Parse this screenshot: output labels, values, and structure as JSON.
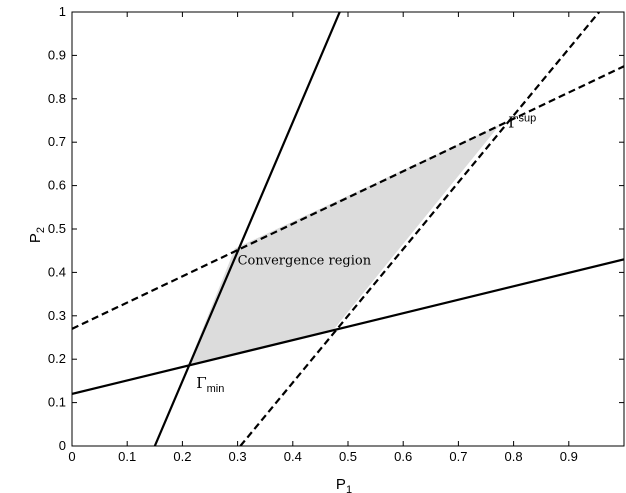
{
  "chart_data": {
    "type": "line",
    "title": "",
    "xlabel": "P",
    "xlabel_sub": "1",
    "ylabel": "P",
    "ylabel_sub": "2",
    "xlim": [
      0,
      1
    ],
    "ylim": [
      0,
      1
    ],
    "grid": false,
    "x_ticks": [
      "0",
      "0.1",
      "0.2",
      "0.3",
      "0.4",
      "0.5",
      "0.6",
      "0.7",
      "0.8",
      "0.9"
    ],
    "y_ticks": [
      "0",
      "0.1",
      "0.2",
      "0.3",
      "0.4",
      "0.5",
      "0.6",
      "0.7",
      "0.8",
      "0.9",
      "1"
    ],
    "series": [
      {
        "style": "solid",
        "color": "#000000",
        "points": [
          [
            0.15,
            0.0
          ],
          [
            0.485,
            1.0
          ]
        ]
      },
      {
        "style": "solid",
        "color": "#000000",
        "points": [
          [
            0.0,
            0.12
          ],
          [
            1.0,
            0.43
          ]
        ]
      },
      {
        "style": "dashed",
        "color": "#000000",
        "points": [
          [
            0.0,
            0.27
          ],
          [
            1.0,
            0.875
          ]
        ]
      },
      {
        "style": "dashed",
        "color": "#000000",
        "points": [
          [
            0.305,
            0.0
          ],
          [
            0.955,
            1.0
          ]
        ]
      }
    ],
    "region": {
      "label": "Convergence region",
      "fill": "#dcdcdc",
      "points": [
        [
          0.21,
          0.185
        ],
        [
          0.295,
          0.455
        ],
        [
          0.775,
          0.74
        ],
        [
          0.475,
          0.27
        ]
      ]
    },
    "annotations": [
      {
        "text": "Γ",
        "sub": "min",
        "x": 0.225,
        "y": 0.145
      },
      {
        "text": "Γ",
        "sup": "sup",
        "x": 0.79,
        "y": 0.745
      },
      {
        "text": "Convergence region",
        "x": 0.3,
        "y": 0.43
      }
    ]
  }
}
